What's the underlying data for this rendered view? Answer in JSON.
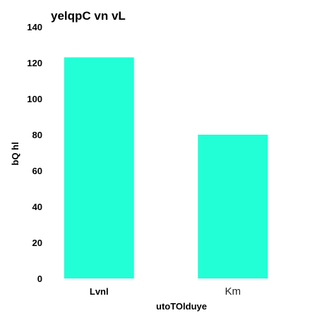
{
  "chart_data": {
    "type": "bar",
    "title": "yelqpC vn vL",
    "xlabel": "utoTOlduye",
    "ylabel": "bQ hl",
    "categories": [
      "Lvnl",
      "Km"
    ],
    "values": [
      123,
      80
    ],
    "ylim": [
      0,
      140
    ],
    "yticks": [
      0,
      20,
      40,
      60,
      80,
      100,
      120,
      140
    ],
    "grid": false,
    "legend": "none",
    "bar_color": "#22ffd6"
  }
}
